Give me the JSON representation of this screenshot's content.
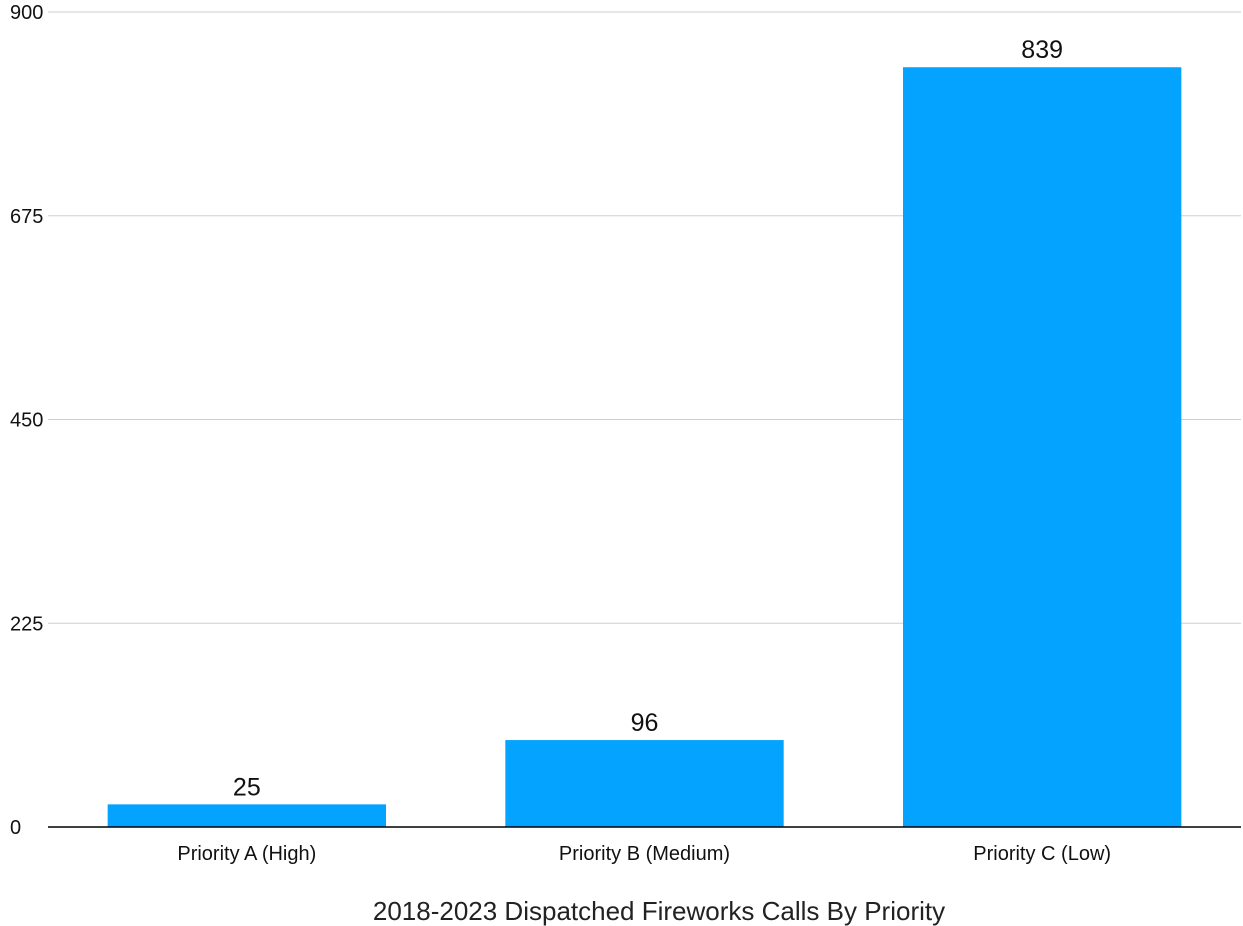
{
  "chart_data": {
    "type": "bar",
    "title": "2018-2023 Dispatched Fireworks Calls By Priority",
    "xlabel": "",
    "ylabel": "",
    "categories": [
      "Priority A (High)",
      "Priority B (Medium)",
      "Priority C (Low)"
    ],
    "values": [
      25,
      96,
      839
    ],
    "data_labels": [
      "25",
      "96",
      "839"
    ],
    "ylim": [
      0,
      900
    ],
    "yticks": [
      0,
      225,
      450,
      675,
      900
    ],
    "ytick_labels": [
      "0",
      "225",
      "450",
      "675",
      "900"
    ],
    "grid": true,
    "legend": "none",
    "bar_color": "#04A3FF",
    "gridline_color": "#CFCFCF",
    "axis_color": "#000000"
  }
}
